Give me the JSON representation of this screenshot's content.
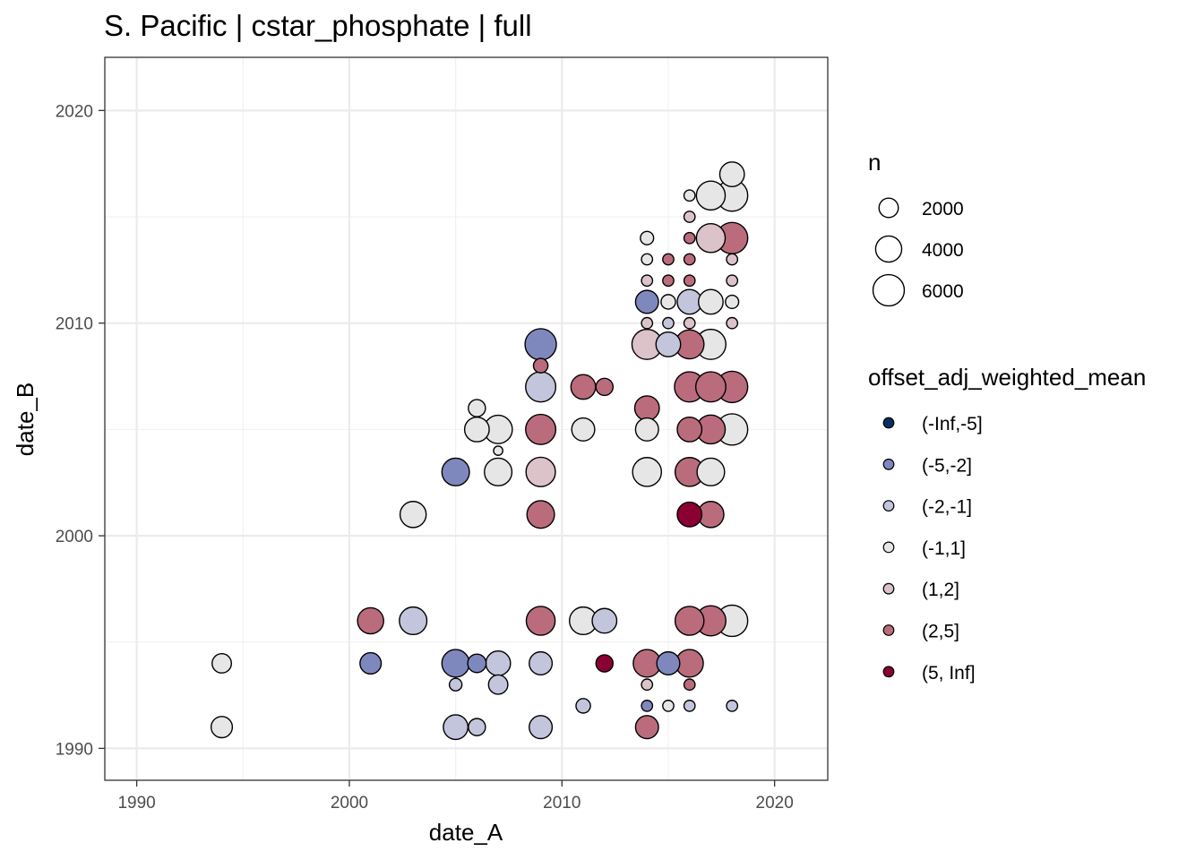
{
  "chart_data": {
    "type": "scatter",
    "title": "S. Pacific | cstar_phosphate | full",
    "xlabel": "date_A",
    "ylabel": "date_B",
    "xlim": [
      1988.5,
      2022.5
    ],
    "ylim": [
      1988.5,
      2022.5
    ],
    "x_ticks": [
      1990,
      2000,
      2010,
      2020
    ],
    "y_ticks": [
      1990,
      2000,
      2010,
      2020
    ],
    "x_tick_labels": [
      "1990",
      "2000",
      "2010",
      "2020"
    ],
    "y_tick_labels": [
      "1990",
      "2000",
      "2010",
      "2020"
    ],
    "grid": true,
    "size_legend": {
      "title": "n",
      "entries": [
        {
          "label": "2000",
          "value": 2000
        },
        {
          "label": "4000",
          "value": 4000
        },
        {
          "label": "6000",
          "value": 6000
        }
      ]
    },
    "color_legend": {
      "title": "offset_adj_weighted_mean",
      "entries": [
        {
          "label": "(-Inf,-5]",
          "color": "#053061"
        },
        {
          "label": "(-5,-2]",
          "color": "#7f88bc"
        },
        {
          "label": "(-2,-1]",
          "color": "#c3c5dc"
        },
        {
          "label": "(-1,1]",
          "color": "#e6e6e6"
        },
        {
          "label": "(1,2]",
          "color": "#dcc2c9"
        },
        {
          "label": "(2,5]",
          "color": "#ba6c7c"
        },
        {
          "label": "(5, Inf]",
          "color": "#8b0033"
        }
      ]
    },
    "points": [
      {
        "x": 1994,
        "y": 1991,
        "n": 2500,
        "cat": "(-1,1]"
      },
      {
        "x": 1994,
        "y": 1994,
        "n": 2000,
        "cat": "(-1,1]"
      },
      {
        "x": 2001,
        "y": 1994,
        "n": 2500,
        "cat": "(-5,-2]"
      },
      {
        "x": 2001,
        "y": 1996,
        "n": 4000,
        "cat": "(2,5]"
      },
      {
        "x": 2003,
        "y": 1996,
        "n": 4500,
        "cat": "(-2,-1]"
      },
      {
        "x": 2003,
        "y": 2001,
        "n": 4000,
        "cat": "(-1,1]"
      },
      {
        "x": 2005,
        "y": 1991,
        "n": 3500,
        "cat": "(-2,-1]"
      },
      {
        "x": 2005,
        "y": 1993,
        "n": 700,
        "cat": "(-2,-1]"
      },
      {
        "x": 2005,
        "y": 1994,
        "n": 4500,
        "cat": "(-5,-2]"
      },
      {
        "x": 2005,
        "y": 2003,
        "n": 4500,
        "cat": "(-5,-2]"
      },
      {
        "x": 2006,
        "y": 1991,
        "n": 1500,
        "cat": "(-2,-1]"
      },
      {
        "x": 2006,
        "y": 1994,
        "n": 1800,
        "cat": "(-5,-2]"
      },
      {
        "x": 2006,
        "y": 2005,
        "n": 3500,
        "cat": "(-1,1]"
      },
      {
        "x": 2006,
        "y": 2006,
        "n": 1500,
        "cat": "(-1,1]"
      },
      {
        "x": 2007,
        "y": 1993,
        "n": 2000,
        "cat": "(-2,-1]"
      },
      {
        "x": 2007,
        "y": 1994,
        "n": 3500,
        "cat": "(-2,-1]"
      },
      {
        "x": 2007,
        "y": 2003,
        "n": 4500,
        "cat": "(-1,1]"
      },
      {
        "x": 2007,
        "y": 2004,
        "n": 300,
        "cat": "(-1,1]"
      },
      {
        "x": 2007,
        "y": 2005,
        "n": 4800,
        "cat": "(-1,1]"
      },
      {
        "x": 2009,
        "y": 1991,
        "n": 3000,
        "cat": "(-2,-1]"
      },
      {
        "x": 2009,
        "y": 1994,
        "n": 3000,
        "cat": "(-2,-1]"
      },
      {
        "x": 2009,
        "y": 1996,
        "n": 5000,
        "cat": "(2,5]"
      },
      {
        "x": 2009,
        "y": 2001,
        "n": 4500,
        "cat": "(2,5]"
      },
      {
        "x": 2009,
        "y": 2003,
        "n": 5200,
        "cat": "(1,2]"
      },
      {
        "x": 2009,
        "y": 2005,
        "n": 5500,
        "cat": "(2,5]"
      },
      {
        "x": 2009,
        "y": 2007,
        "n": 5500,
        "cat": "(-2,-1]"
      },
      {
        "x": 2009,
        "y": 2008,
        "n": 1000,
        "cat": "(2,5]"
      },
      {
        "x": 2009,
        "y": 2009,
        "n": 6000,
        "cat": "(-5,-2]"
      },
      {
        "x": 2011,
        "y": 1992,
        "n": 1000,
        "cat": "(-2,-1]"
      },
      {
        "x": 2011,
        "y": 1996,
        "n": 4500,
        "cat": "(-1,1]"
      },
      {
        "x": 2011,
        "y": 2005,
        "n": 3000,
        "cat": "(-1,1]"
      },
      {
        "x": 2011,
        "y": 2007,
        "n": 3500,
        "cat": "(2,5]"
      },
      {
        "x": 2012,
        "y": 1994,
        "n": 1500,
        "cat": "(5, Inf]"
      },
      {
        "x": 2012,
        "y": 1996,
        "n": 3500,
        "cat": "(-2,-1]"
      },
      {
        "x": 2012,
        "y": 2007,
        "n": 1500,
        "cat": "(2,5]"
      },
      {
        "x": 2014,
        "y": 1991,
        "n": 3000,
        "cat": "(2,5]"
      },
      {
        "x": 2014,
        "y": 1992,
        "n": 500,
        "cat": "(-5,-2]"
      },
      {
        "x": 2014,
        "y": 1993,
        "n": 500,
        "cat": "(1,2]"
      },
      {
        "x": 2014,
        "y": 1994,
        "n": 4500,
        "cat": "(2,5]"
      },
      {
        "x": 2014,
        "y": 2003,
        "n": 5000,
        "cat": "(-1,1]"
      },
      {
        "x": 2014,
        "y": 2005,
        "n": 3000,
        "cat": "(-1,1]"
      },
      {
        "x": 2014,
        "y": 2006,
        "n": 3500,
        "cat": "(2,5]"
      },
      {
        "x": 2014,
        "y": 2009,
        "n": 5500,
        "cat": "(1,2]"
      },
      {
        "x": 2014,
        "y": 2010,
        "n": 500,
        "cat": "(1,2]"
      },
      {
        "x": 2014,
        "y": 2011,
        "n": 3000,
        "cat": "(-5,-2]"
      },
      {
        "x": 2014,
        "y": 2012,
        "n": 500,
        "cat": "(1,2]"
      },
      {
        "x": 2014,
        "y": 2013,
        "n": 500,
        "cat": "(-1,1]"
      },
      {
        "x": 2014,
        "y": 2014,
        "n": 800,
        "cat": "(-1,1]"
      },
      {
        "x": 2015,
        "y": 1992,
        "n": 500,
        "cat": "(-1,1]"
      },
      {
        "x": 2015,
        "y": 1994,
        "n": 3000,
        "cat": "(-5,-2]"
      },
      {
        "x": 2015,
        "y": 2009,
        "n": 3500,
        "cat": "(-2,-1]"
      },
      {
        "x": 2015,
        "y": 2010,
        "n": 500,
        "cat": "(-2,-1]"
      },
      {
        "x": 2015,
        "y": 2011,
        "n": 1000,
        "cat": "(-1,1]"
      },
      {
        "x": 2015,
        "y": 2012,
        "n": 500,
        "cat": "(2,5]"
      },
      {
        "x": 2015,
        "y": 2013,
        "n": 500,
        "cat": "(2,5]"
      },
      {
        "x": 2016,
        "y": 1992,
        "n": 500,
        "cat": "(-2,-1]"
      },
      {
        "x": 2016,
        "y": 1993,
        "n": 500,
        "cat": "(2,5]"
      },
      {
        "x": 2016,
        "y": 1994,
        "n": 4500,
        "cat": "(2,5]"
      },
      {
        "x": 2016,
        "y": 1996,
        "n": 5000,
        "cat": "(2,5]"
      },
      {
        "x": 2016,
        "y": 2001,
        "n": 3500,
        "cat": "(5, Inf]"
      },
      {
        "x": 2016,
        "y": 2003,
        "n": 5000,
        "cat": "(2,5]"
      },
      {
        "x": 2016,
        "y": 2005,
        "n": 3500,
        "cat": "(2,5]"
      },
      {
        "x": 2016,
        "y": 2007,
        "n": 5500,
        "cat": "(2,5]"
      },
      {
        "x": 2016,
        "y": 2009,
        "n": 5000,
        "cat": "(2,5]"
      },
      {
        "x": 2016,
        "y": 2010,
        "n": 500,
        "cat": "(1,2]"
      },
      {
        "x": 2016,
        "y": 2011,
        "n": 3500,
        "cat": "(-2,-1]"
      },
      {
        "x": 2016,
        "y": 2012,
        "n": 500,
        "cat": "(2,5]"
      },
      {
        "x": 2016,
        "y": 2013,
        "n": 500,
        "cat": "(2,5]"
      },
      {
        "x": 2016,
        "y": 2014,
        "n": 500,
        "cat": "(2,5]"
      },
      {
        "x": 2016,
        "y": 2015,
        "n": 500,
        "cat": "(1,2]"
      },
      {
        "x": 2016,
        "y": 2016,
        "n": 500,
        "cat": "(-1,1]"
      },
      {
        "x": 2017,
        "y": 1996,
        "n": 5500,
        "cat": "(2,5]"
      },
      {
        "x": 2017,
        "y": 2001,
        "n": 4000,
        "cat": "(2,5]"
      },
      {
        "x": 2017,
        "y": 2003,
        "n": 4500,
        "cat": "(-1,1]"
      },
      {
        "x": 2017,
        "y": 2005,
        "n": 5000,
        "cat": "(2,5]"
      },
      {
        "x": 2017,
        "y": 2007,
        "n": 5500,
        "cat": "(2,5]"
      },
      {
        "x": 2017,
        "y": 2009,
        "n": 5500,
        "cat": "(-1,1]"
      },
      {
        "x": 2017,
        "y": 2011,
        "n": 3500,
        "cat": "(-1,1]"
      },
      {
        "x": 2017,
        "y": 2014,
        "n": 5000,
        "cat": "(1,2]"
      },
      {
        "x": 2017,
        "y": 2016,
        "n": 5000,
        "cat": "(-1,1]"
      },
      {
        "x": 2018,
        "y": 1992,
        "n": 500,
        "cat": "(-2,-1]"
      },
      {
        "x": 2018,
        "y": 1996,
        "n": 6000,
        "cat": "(-1,1]"
      },
      {
        "x": 2018,
        "y": 2005,
        "n": 6000,
        "cat": "(-1,1]"
      },
      {
        "x": 2018,
        "y": 2007,
        "n": 6000,
        "cat": "(2,5]"
      },
      {
        "x": 2018,
        "y": 2010,
        "n": 500,
        "cat": "(1,2]"
      },
      {
        "x": 2018,
        "y": 2011,
        "n": 800,
        "cat": "(-1,1]"
      },
      {
        "x": 2018,
        "y": 2012,
        "n": 500,
        "cat": "(1,2]"
      },
      {
        "x": 2018,
        "y": 2013,
        "n": 500,
        "cat": "(1,2]"
      },
      {
        "x": 2018,
        "y": 2014,
        "n": 6000,
        "cat": "(2,5]"
      },
      {
        "x": 2018,
        "y": 2016,
        "n": 6000,
        "cat": "(-1,1]"
      },
      {
        "x": 2018,
        "y": 2017,
        "n": 3500,
        "cat": "(-1,1]"
      }
    ]
  }
}
